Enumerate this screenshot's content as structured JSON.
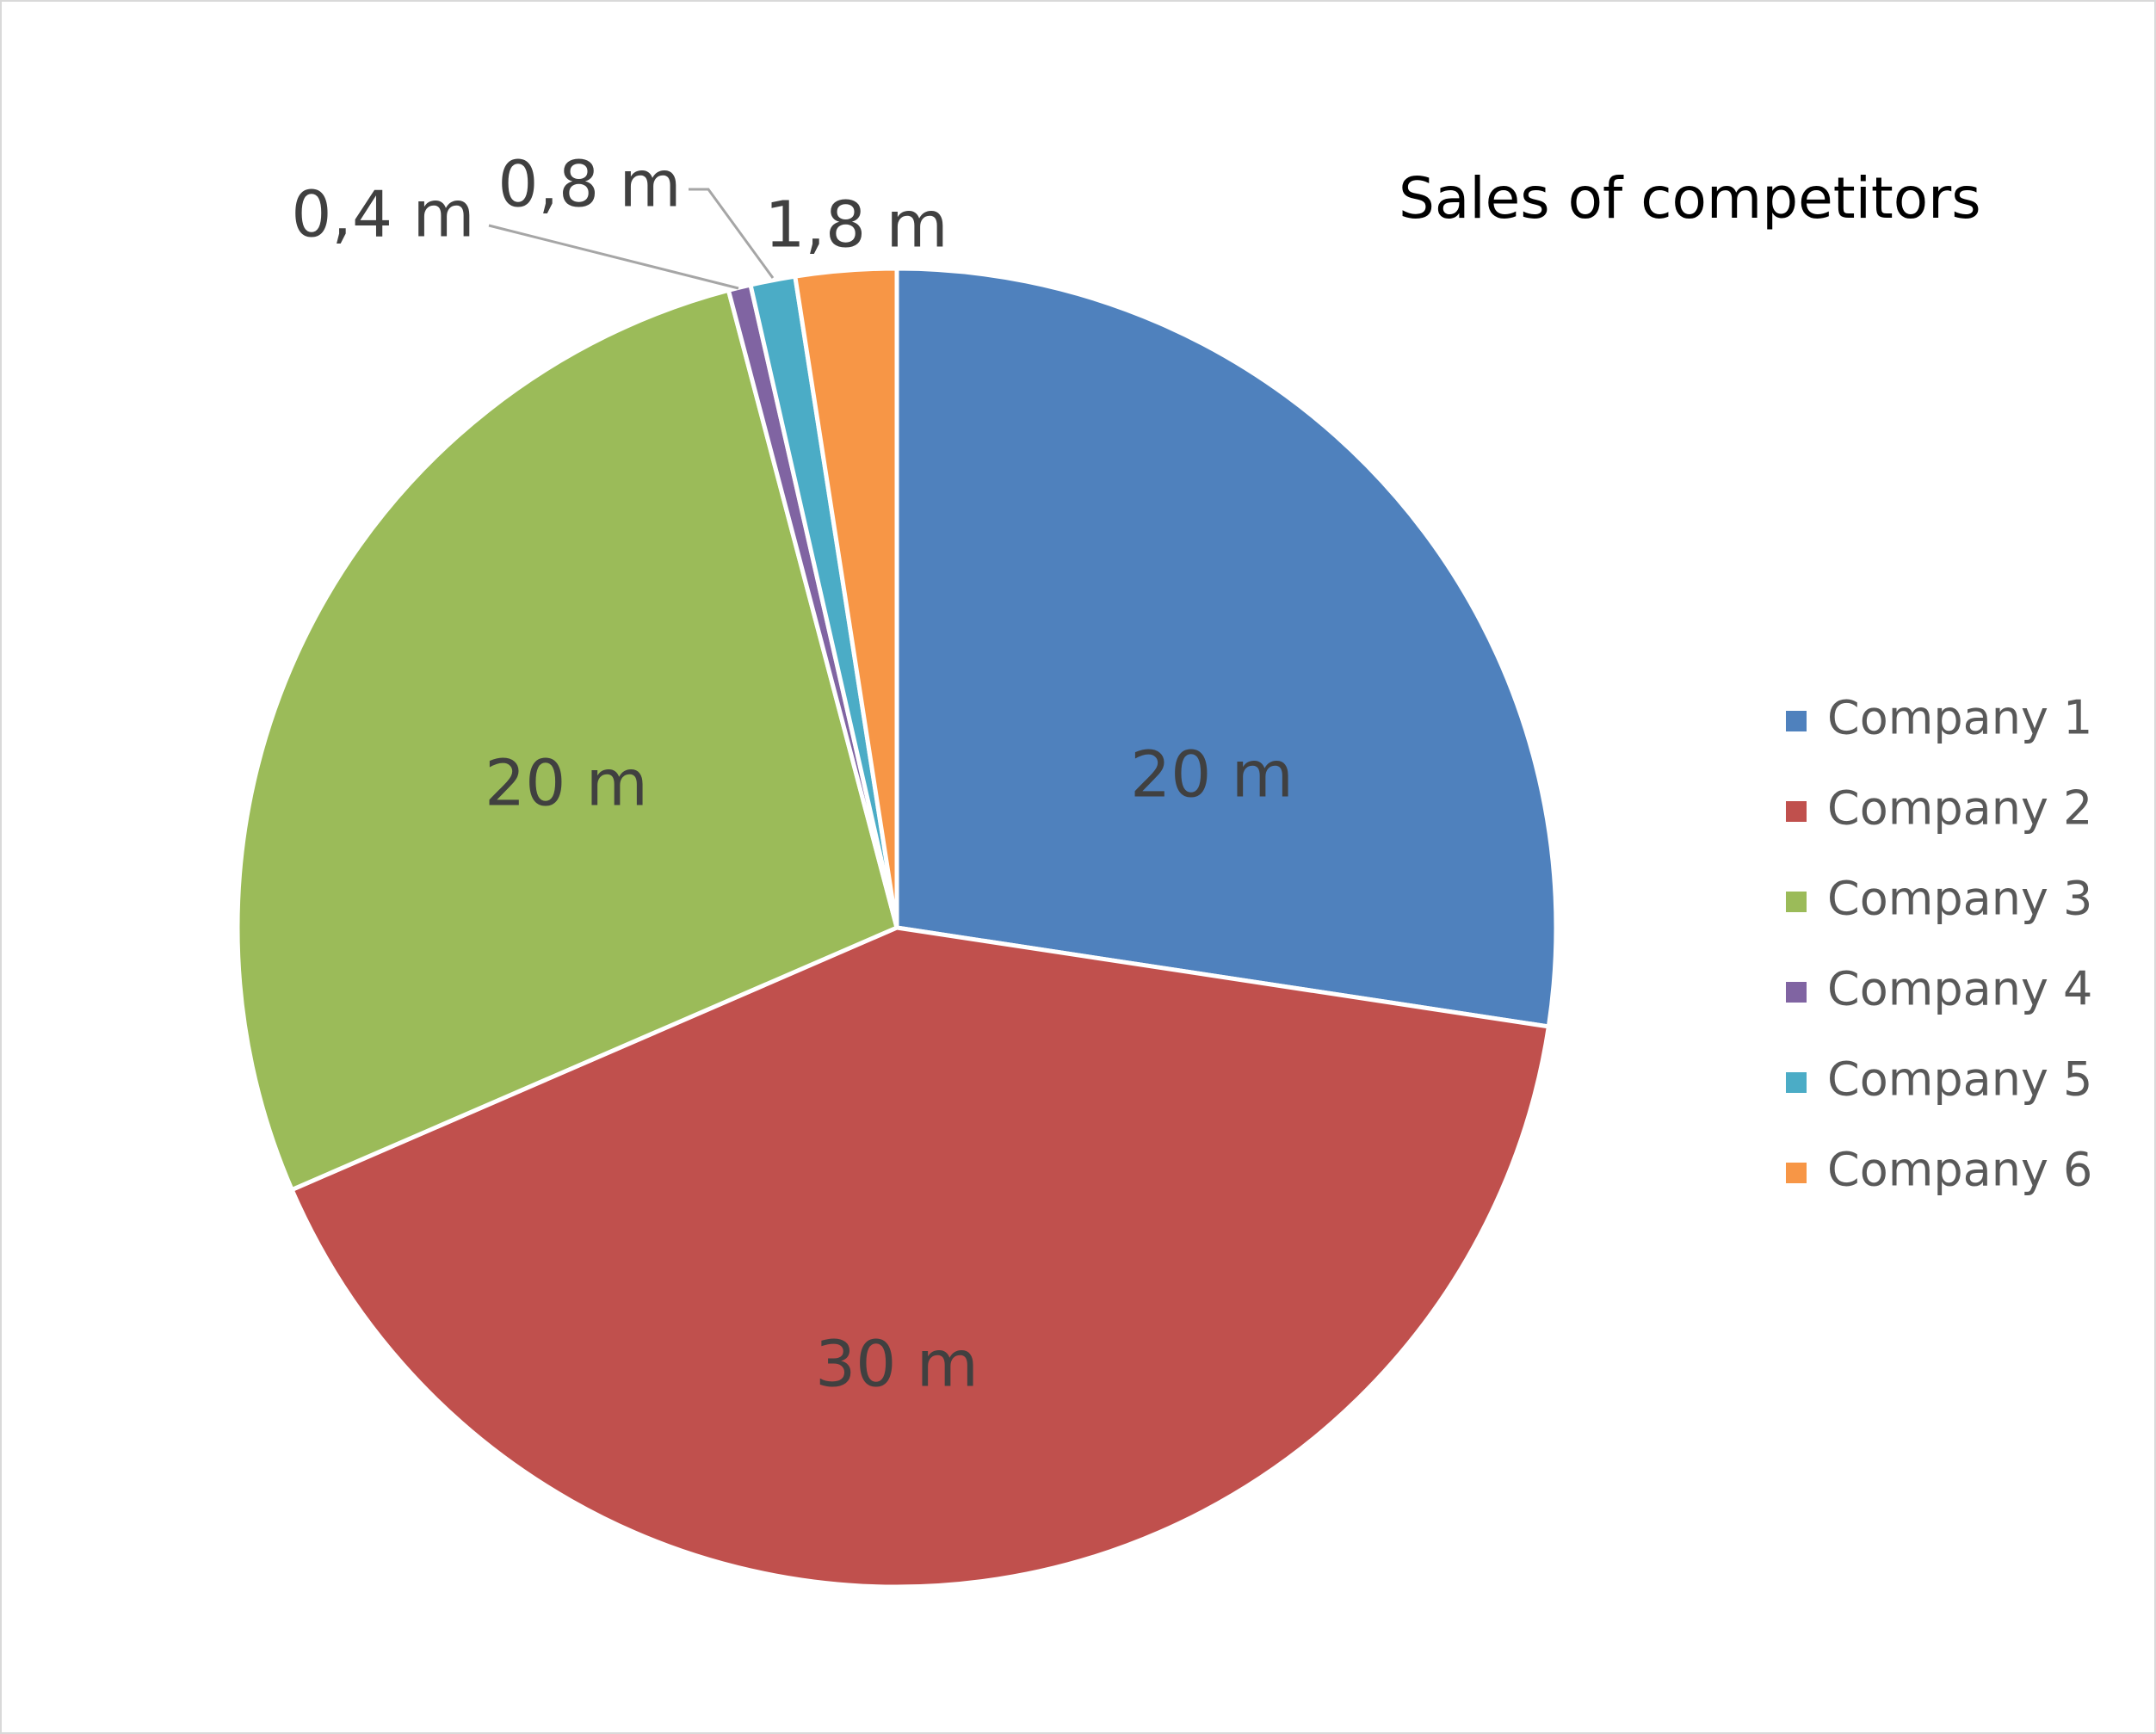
{
  "chart_data": {
    "type": "pie",
    "title": "Sales of competitors",
    "legend_position": "right",
    "start_angle": "12 o'clock, clockwise",
    "categories": [
      "Company 1",
      "Company 2",
      "Company 3",
      "Company 4",
      "Company 5",
      "Company 6"
    ],
    "values": [
      20,
      30,
      20,
      0.4,
      0.8,
      1.8
    ],
    "data_labels": [
      "20 m",
      "30 m",
      "20 m",
      "0,4 m",
      "0,8 m",
      "1,8 m"
    ],
    "colors": [
      "#4f81bd",
      "#c0504d",
      "#9bbb59",
      "#8064a2",
      "#4bacc6",
      "#f79646"
    ]
  }
}
